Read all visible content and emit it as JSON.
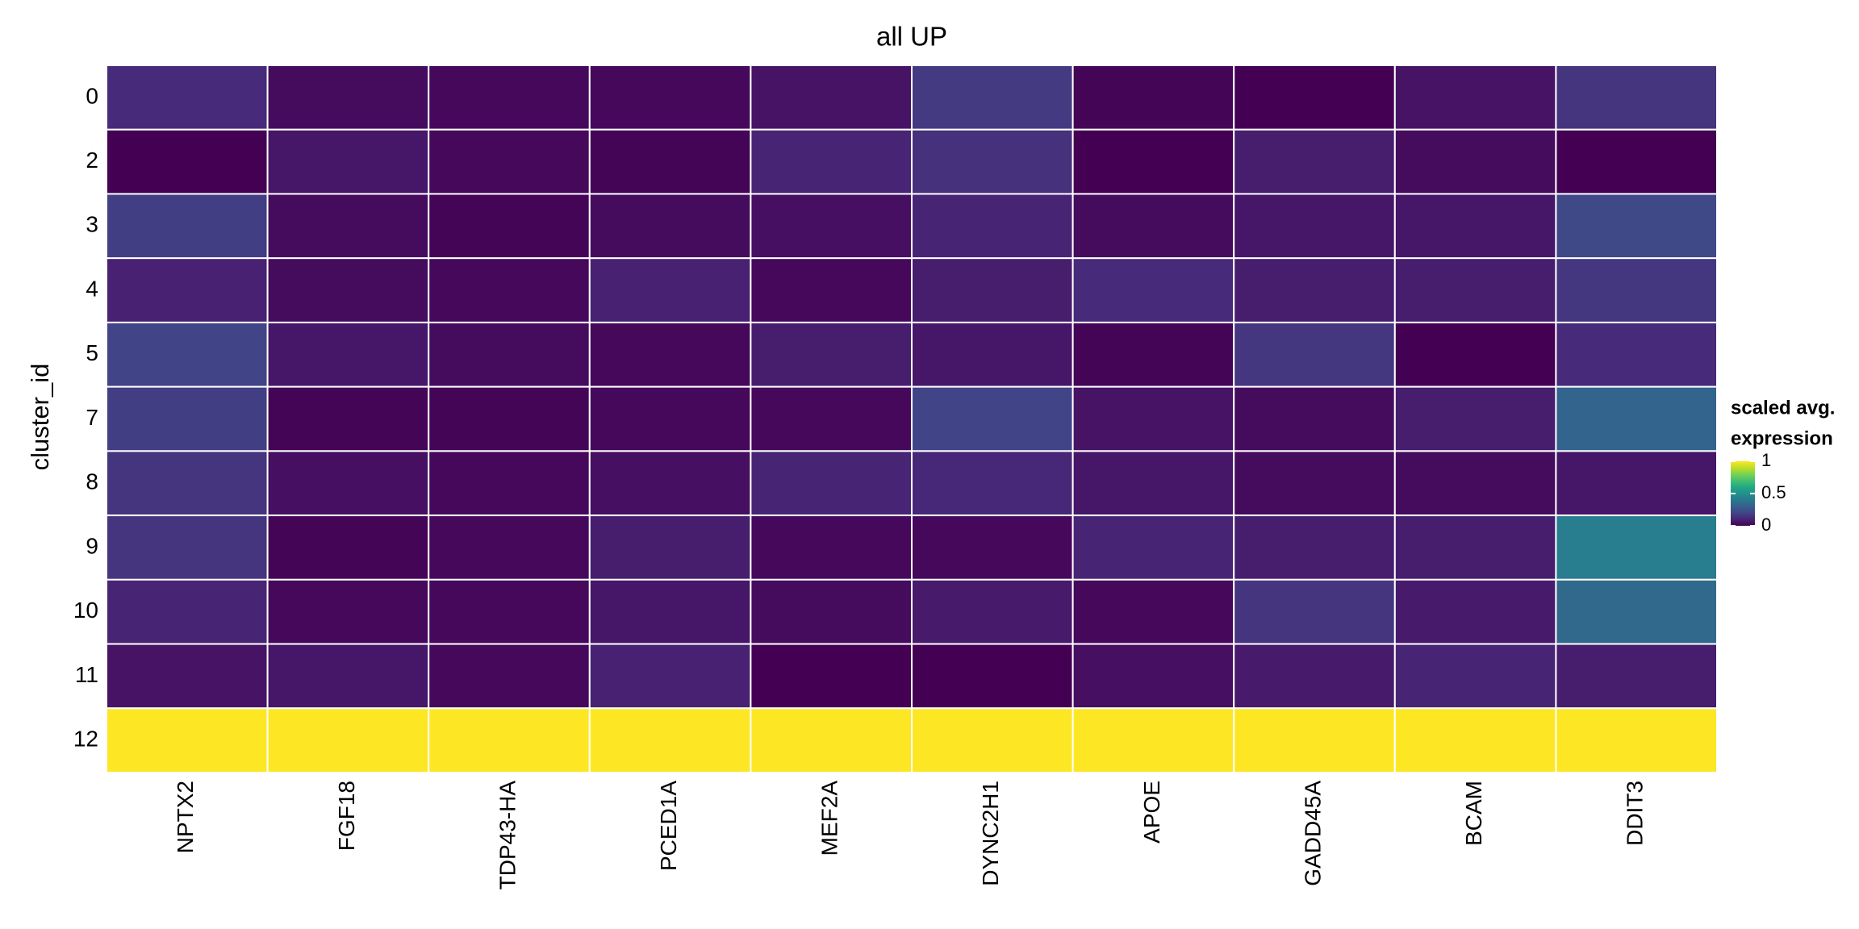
{
  "chart_data": {
    "type": "heatmap",
    "title": "all UP",
    "y_label": "cluster_id",
    "legend_title": [
      "scaled avg.",
      "expression"
    ],
    "colormap": "viridis",
    "x": [
      "NPTX2",
      "FGF18",
      "TDP43-HA",
      "PCED1A",
      "MEF2A",
      "DYNC2H1",
      "APOE",
      "GADD45A",
      "BCAM",
      "DDIT3"
    ],
    "y": [
      "0",
      "2",
      "3",
      "4",
      "5",
      "7",
      "8",
      "9",
      "10",
      "11",
      "12"
    ],
    "values": [
      [
        0.12,
        0.03,
        0.02,
        0.02,
        0.05,
        0.17,
        0.01,
        0.0,
        0.05,
        0.15
      ],
      [
        0.0,
        0.06,
        0.02,
        0.01,
        0.1,
        0.14,
        0.0,
        0.08,
        0.03,
        0.0
      ],
      [
        0.18,
        0.03,
        0.01,
        0.03,
        0.04,
        0.1,
        0.03,
        0.06,
        0.06,
        0.22
      ],
      [
        0.09,
        0.03,
        0.02,
        0.09,
        0.02,
        0.08,
        0.12,
        0.08,
        0.08,
        0.16
      ],
      [
        0.2,
        0.06,
        0.03,
        0.02,
        0.08,
        0.06,
        0.01,
        0.16,
        0.0,
        0.12
      ],
      [
        0.18,
        0.01,
        0.01,
        0.02,
        0.02,
        0.2,
        0.05,
        0.03,
        0.08,
        0.32
      ],
      [
        0.15,
        0.04,
        0.02,
        0.04,
        0.1,
        0.11,
        0.06,
        0.03,
        0.03,
        0.06
      ],
      [
        0.15,
        0.01,
        0.02,
        0.08,
        0.02,
        0.02,
        0.1,
        0.08,
        0.08,
        0.42
      ],
      [
        0.1,
        0.02,
        0.02,
        0.06,
        0.03,
        0.07,
        0.02,
        0.15,
        0.07,
        0.34
      ],
      [
        0.05,
        0.06,
        0.02,
        0.09,
        0.0,
        0.0,
        0.04,
        0.07,
        0.1,
        0.08
      ],
      [
        1,
        1,
        1,
        1,
        1,
        1,
        1,
        1,
        1,
        1
      ]
    ],
    "clim": [
      0,
      1
    ],
    "cticks": [
      0,
      0.5,
      1
    ]
  }
}
